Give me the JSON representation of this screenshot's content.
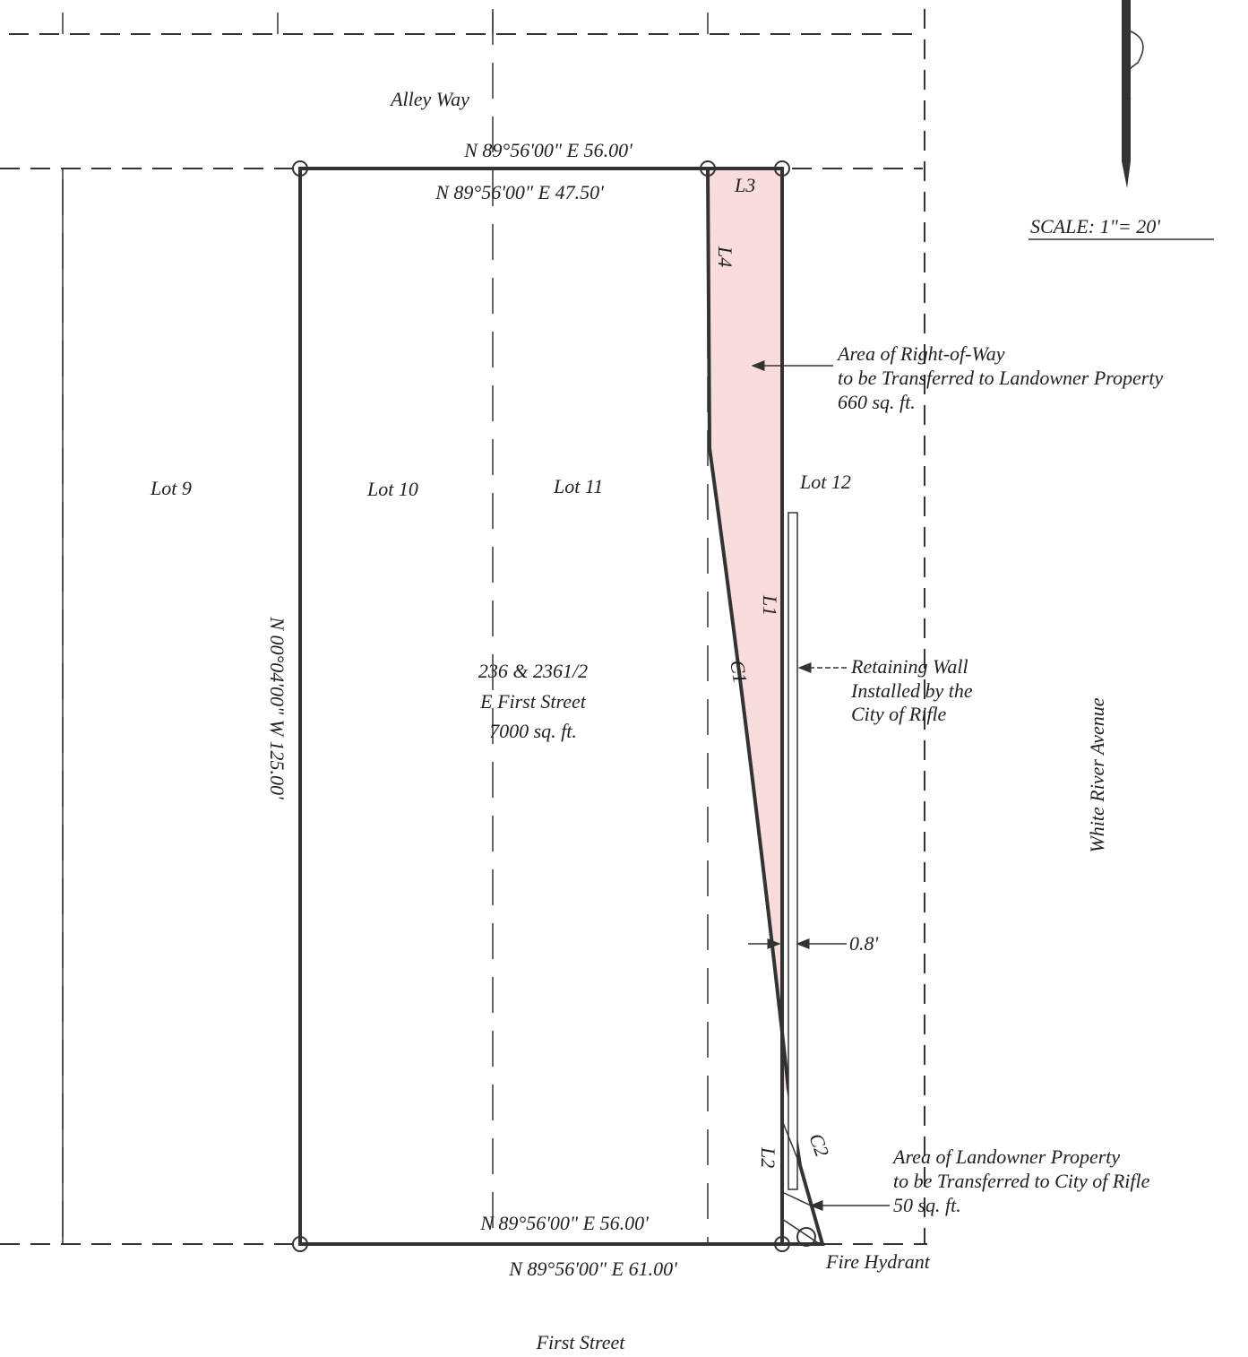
{
  "streets": {
    "north": "Alley Way",
    "east": "White River Avenue",
    "south": "First Street"
  },
  "bearings": {
    "top_outer": "N 89°56'00\" E  56.00'",
    "top_inner": "N 89°56'00\" E  47.50'",
    "west": "N 00°04'00\" W  125.00'",
    "bottom_inner": "N 89°56'00\" E  56.00'",
    "bottom_outer": "N 89°56'00\" E  61.00'"
  },
  "segments": {
    "l1": "L1",
    "l2": "L2",
    "l3": "L3",
    "l4": "L4",
    "c1": "C1",
    "c2": "C2"
  },
  "scale": "SCALE: 1\"= 20'",
  "lots": [
    "Lot 9",
    "Lot 10",
    "Lot 11",
    "Lot 12"
  ],
  "parcel": {
    "lines": [
      "236 & 2361/2",
      "E First Street",
      "7000 sq. ft."
    ]
  },
  "notes": {
    "right_of_way": [
      "Area of Right-of-Way",
      "to be Transferred to Landowner Property",
      "660 sq. ft."
    ],
    "retaining_wall": [
      "Retaining Wall",
      "Installed by the",
      "City of Rifle"
    ],
    "offset": "0.8'",
    "landowner": [
      "Area of Landowner Property",
      "to be Transferred to City of Rifle",
      "50 sq. ft."
    ],
    "hydrant": "Fire Hydrant"
  }
}
